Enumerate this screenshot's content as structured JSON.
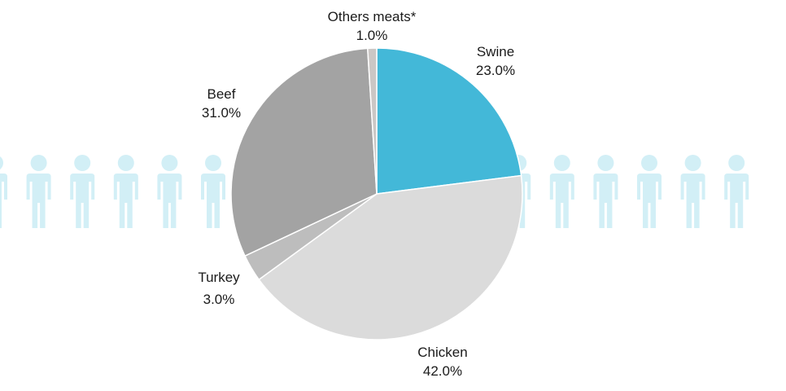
{
  "chart_data": {
    "type": "pie",
    "start_angle_deg": 0,
    "direction": "clockwise",
    "slices": [
      {
        "label": "Swine",
        "value_text": "23.0%",
        "value": 23.0,
        "color": "#43b8d8"
      },
      {
        "label": "Chicken",
        "value_text": "42.0%",
        "value": 42.0,
        "color": "#dbdbdb"
      },
      {
        "label": "Turkey",
        "value_text": "3.0%",
        "value": 3.0,
        "color": "#bdbdbd"
      },
      {
        "label": "Beef",
        "value_text": "31.0%",
        "value": 31.0,
        "color": "#a3a3a3"
      },
      {
        "label": "Others meats*",
        "value_text": "1.0%",
        "value": 1.0,
        "color": "#cbc7c5"
      }
    ],
    "background": {
      "icon": "person-icon",
      "color": "#d2eff6",
      "count": 18
    }
  }
}
